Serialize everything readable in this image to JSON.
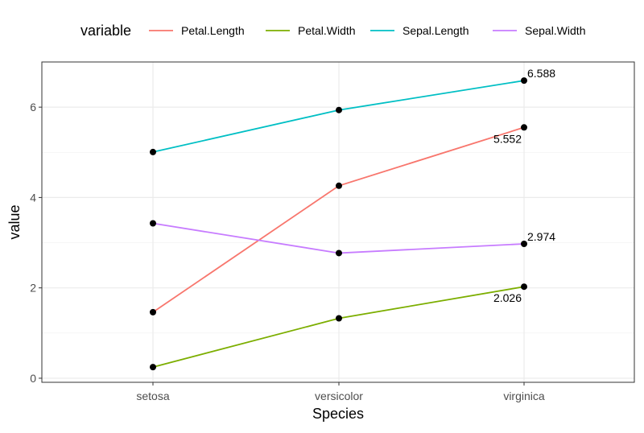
{
  "chart_data": {
    "type": "line",
    "title": "",
    "xlabel": "Species",
    "ylabel": "value",
    "categories": [
      "setosa",
      "versicolor",
      "virginica"
    ],
    "ylim": [
      -0.09,
      7.0
    ],
    "yticks": [
      0,
      2,
      4,
      6
    ],
    "grid": true,
    "legend": {
      "title": "variable",
      "placement": "top"
    },
    "series": [
      {
        "name": "Petal.Length",
        "color": "#F8766D",
        "values": [
          1.462,
          4.26,
          5.552
        ]
      },
      {
        "name": "Petal.Width",
        "color": "#7CAE00",
        "values": [
          0.246,
          1.326,
          2.026
        ]
      },
      {
        "name": "Sepal.Length",
        "color": "#00BFC4",
        "values": [
          5.006,
          5.936,
          6.588
        ]
      },
      {
        "name": "Sepal.Width",
        "color": "#C77CFF",
        "values": [
          3.428,
          2.77,
          2.974
        ]
      }
    ],
    "annotations": [
      {
        "series": "Sepal.Length",
        "category": "virginica",
        "text": "6.588",
        "position": "above-right"
      },
      {
        "series": "Petal.Length",
        "category": "virginica",
        "text": "5.552",
        "position": "below-left"
      },
      {
        "series": "Sepal.Width",
        "category": "virginica",
        "text": "2.974",
        "position": "above-right"
      },
      {
        "series": "Petal.Width",
        "category": "virginica",
        "text": "2.026",
        "position": "below-left"
      }
    ]
  }
}
